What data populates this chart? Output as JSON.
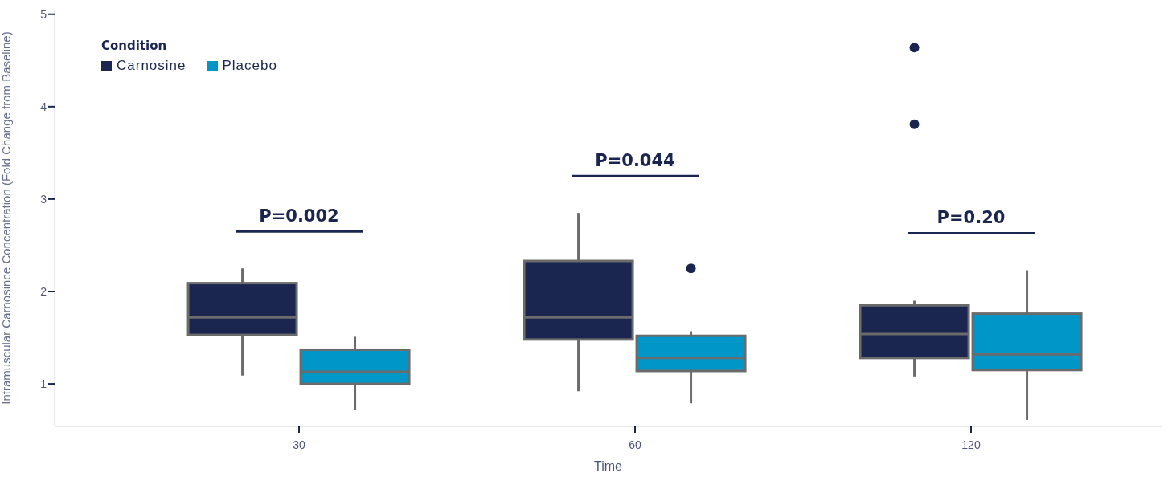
{
  "chart_data": {
    "type": "box",
    "xlabel": "Time",
    "ylabel": "Intramuscular Carnosince Concentration (Fold Change from Baseline)",
    "legend_title": "Condition",
    "legend": "top left",
    "categories": [
      "30",
      "60",
      "120"
    ],
    "series": [
      {
        "name": "Carnosine",
        "color": "#1b2650",
        "boxes": [
          {
            "low": 1.09,
            "q1": 1.53,
            "median": 1.72,
            "q3": 2.09,
            "high": 2.25
          },
          {
            "low": 0.92,
            "q1": 1.48,
            "median": 1.72,
            "q3": 2.33,
            "high": 2.85
          },
          {
            "low": 1.08,
            "q1": 1.28,
            "median": 1.54,
            "q3": 1.85,
            "high": 1.9,
            "outliers": [
              4.64,
              3.81
            ]
          }
        ]
      },
      {
        "name": "Placebo",
        "color": "#0097c8",
        "boxes": [
          {
            "low": 0.72,
            "q1": 1.0,
            "median": 1.13,
            "q3": 1.37,
            "high": 1.51
          },
          {
            "low": 0.79,
            "q1": 1.14,
            "median": 1.28,
            "q3": 1.52,
            "high": 1.57,
            "outliers": [
              2.25
            ]
          },
          {
            "low": 0.61,
            "q1": 1.15,
            "median": 1.32,
            "q3": 1.76,
            "high": 2.23
          }
        ]
      }
    ],
    "ylim": [
      0.54,
      5.05
    ],
    "yticks": [
      1,
      2,
      3,
      4,
      5
    ],
    "annotations": [
      "P=0.002",
      "P=0.044",
      "P=0.20"
    ]
  }
}
